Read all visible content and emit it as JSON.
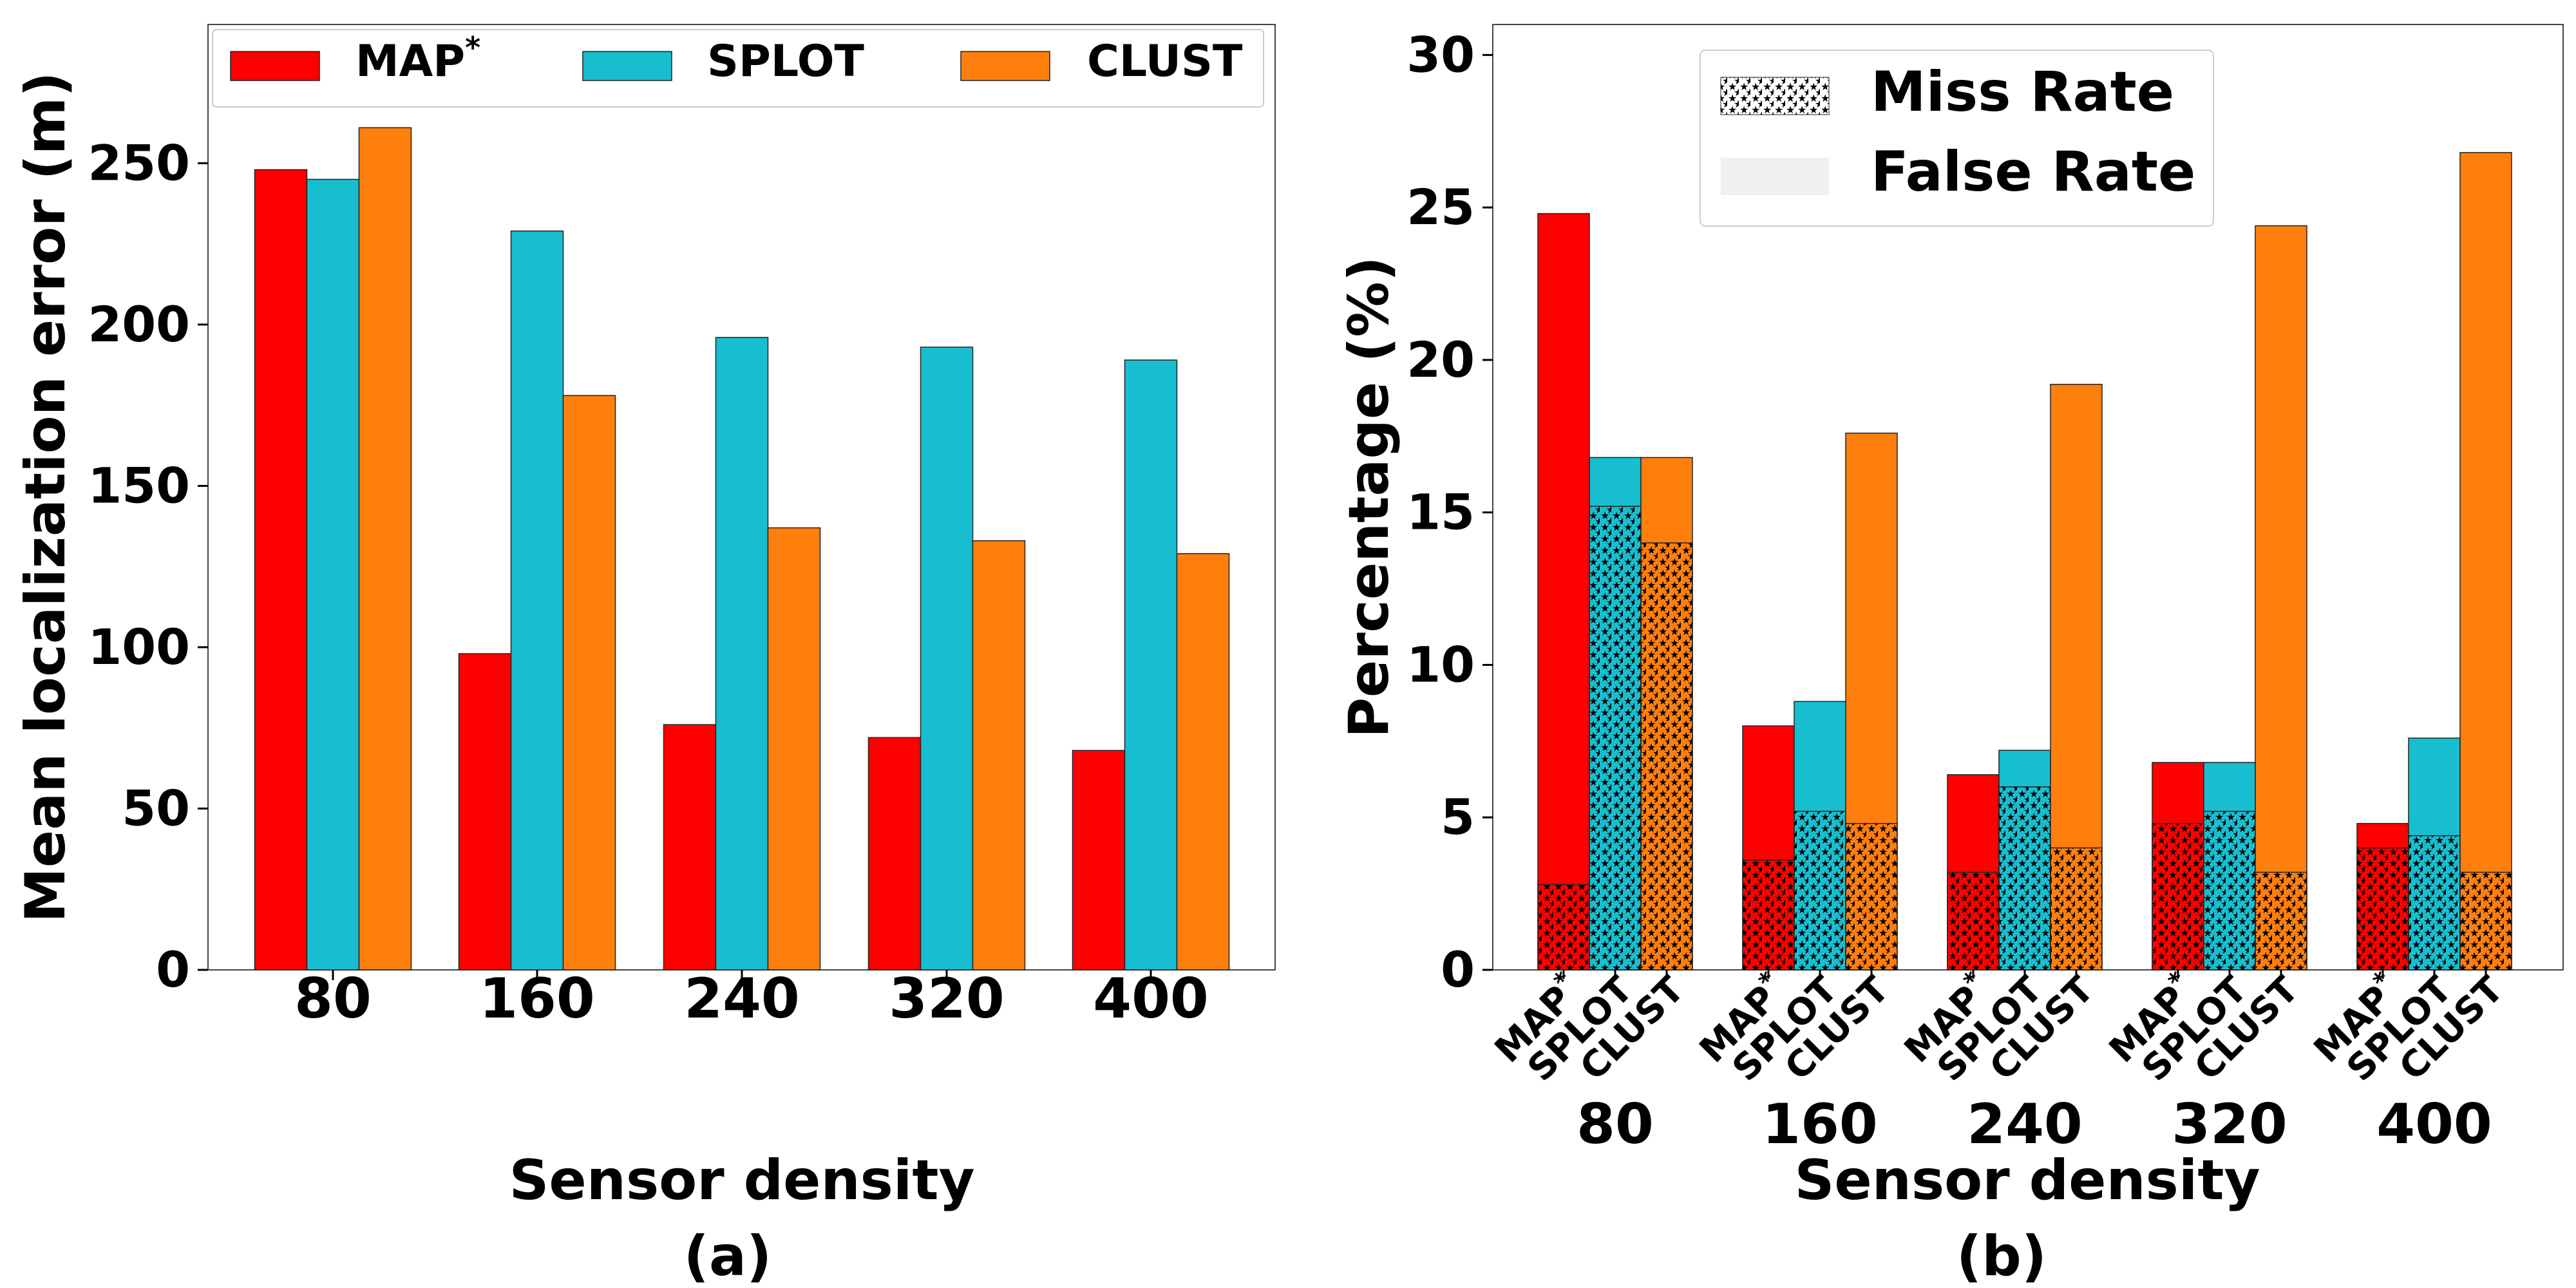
{
  "chart_data": [
    {
      "type": "bar",
      "panel_caption": "(a)",
      "xlabel": "Sensor density",
      "ylabel": "Mean localization error (m)",
      "categories": [
        "80",
        "160",
        "240",
        "320",
        "400"
      ],
      "ylim": [
        0,
        293
      ],
      "yticks": [
        0,
        50,
        100,
        150,
        200,
        250
      ],
      "legend_position": "top",
      "series": [
        {
          "name": "MAP",
          "name_superscript": "*",
          "color": "#ff0000",
          "values": [
            248,
            98,
            76,
            72,
            68
          ]
        },
        {
          "name": "SPLOT",
          "color": "#17becf",
          "values": [
            245,
            229,
            196,
            193,
            189
          ]
        },
        {
          "name": "CLUST",
          "color": "#ff7f0e",
          "values": [
            261,
            178,
            137,
            133,
            129
          ]
        }
      ]
    },
    {
      "type": "bar",
      "stacked": true,
      "panel_caption": "(b)",
      "xlabel": "Sensor density",
      "ylabel": "Percentage (%)",
      "categories": [
        "80",
        "160",
        "240",
        "320",
        "400"
      ],
      "ylim": [
        0,
        31
      ],
      "yticks": [
        0,
        5,
        10,
        15,
        20,
        25,
        30
      ],
      "legend_position": "top-center",
      "legend": [
        {
          "label": "Miss Rate",
          "pattern": "stars"
        },
        {
          "label": "False Rate",
          "pattern": "solid"
        }
      ],
      "methods": [
        {
          "name": "MAP",
          "name_superscript": "*",
          "color": "#ff0000",
          "miss_rate": [
            2.8,
            3.6,
            3.2,
            4.8,
            4.0
          ],
          "total_rate": [
            24.8,
            8.0,
            6.4,
            6.8,
            4.8
          ]
        },
        {
          "name": "SPLOT",
          "color": "#17becf",
          "miss_rate": [
            15.2,
            5.2,
            6.0,
            5.2,
            4.4
          ],
          "total_rate": [
            16.8,
            8.8,
            7.2,
            6.8,
            7.6
          ]
        },
        {
          "name": "CLUST",
          "color": "#ff7f0e",
          "miss_rate": [
            14.0,
            4.8,
            4.0,
            3.2,
            3.2
          ],
          "total_rate": [
            16.8,
            17.6,
            19.2,
            24.4,
            26.8
          ]
        }
      ]
    }
  ]
}
